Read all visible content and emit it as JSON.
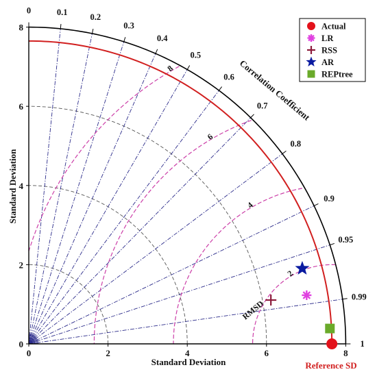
{
  "chart_data": {
    "type": "taylor",
    "xlabel": "Standard Deviation",
    "ylabel": "Standard Deviation",
    "arc_label": "Correlation Coefficient",
    "rmsd_label": "RMSD",
    "ref_label": "Reference SD",
    "sd_max": 8,
    "sd_ticks": [
      "0",
      "2",
      "4",
      "6",
      "8"
    ],
    "sd_tick_values": [
      0,
      2,
      4,
      6,
      8
    ],
    "reference_sd": 7.65,
    "correlation_ticks": [
      {
        "value": 0,
        "label": "0"
      },
      {
        "value": 0.1,
        "label": "0.1"
      },
      {
        "value": 0.2,
        "label": "0.2"
      },
      {
        "value": 0.3,
        "label": "0.3"
      },
      {
        "value": 0.4,
        "label": "0.4"
      },
      {
        "value": 0.5,
        "label": "0.5"
      },
      {
        "value": 0.6,
        "label": "0.6"
      },
      {
        "value": 0.7,
        "label": "0.7"
      },
      {
        "value": 0.8,
        "label": "0.8"
      },
      {
        "value": 0.9,
        "label": "0.9"
      },
      {
        "value": 0.95,
        "label": "0.95"
      },
      {
        "value": 0.99,
        "label": "0.99"
      },
      {
        "value": 1,
        "label": "1"
      }
    ],
    "rmsd_contours": [
      {
        "value": 2,
        "label": "2"
      },
      {
        "value": 4,
        "label": "4"
      },
      {
        "value": 6,
        "label": "6"
      },
      {
        "value": 8,
        "label": "8"
      }
    ],
    "colors": {
      "reference_arc": "#d11f1f",
      "correlation_lines": "#2b2b8a",
      "rmsd_contours": "#cc3fa8",
      "sd_arcs": "#555555",
      "outer_frame": "#000000"
    },
    "series": [
      {
        "name": "Actual",
        "symbol": "circle",
        "color": "#e3121b",
        "sd": 7.65,
        "corr": 1.0
      },
      {
        "name": "LR",
        "symbol": "asterisk",
        "color": "#e040e0",
        "sd": 7.12,
        "corr": 0.985
      },
      {
        "name": "RSS",
        "symbol": "plus",
        "color": "#8b1a3a",
        "sd": 6.21,
        "corr": 0.984
      },
      {
        "name": "AR",
        "symbol": "star",
        "color": "#0a1aa0",
        "sd": 7.16,
        "corr": 0.964
      },
      {
        "name": "REPtree",
        "symbol": "square",
        "color": "#6aaa2a",
        "sd": 7.61,
        "corr": 0.9987
      }
    ],
    "legend_position": "top-right"
  }
}
